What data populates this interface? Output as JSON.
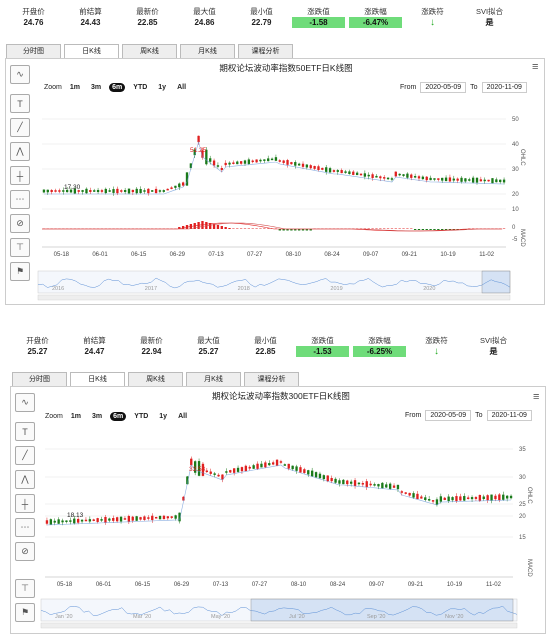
{
  "top": {
    "stats": [
      {
        "label": "开盘价",
        "value": "24.76",
        "style": ""
      },
      {
        "label": "前结算",
        "value": "24.43",
        "style": ""
      },
      {
        "label": "最新价",
        "value": "22.85",
        "style": ""
      },
      {
        "label": "最大值",
        "value": "24.86",
        "style": ""
      },
      {
        "label": "最小值",
        "value": "22.79",
        "style": ""
      },
      {
        "label": "涨跌值",
        "value": "-1.58",
        "style": "green"
      },
      {
        "label": "涨跌幅",
        "value": "-6.47%",
        "style": "green"
      },
      {
        "label": "涨跌符",
        "value": "↓",
        "style": "arrow"
      },
      {
        "label": "SVI拟合",
        "value": "是",
        "style": ""
      }
    ],
    "tabs": [
      "分时图",
      "日K线",
      "周K线",
      "月K线",
      "课程分析"
    ],
    "title": "期权论坛波动率指数50ETF日K线图",
    "zoom_label": "Zoom",
    "zoom_buttons": [
      "1m",
      "3m",
      "6m",
      "YTD",
      "1y",
      "All"
    ],
    "from_label": "From",
    "from_value": "2020-05-09",
    "to_label": "To",
    "to_value": "2020-11-09",
    "yaxis_ticks": [
      "50",
      "40",
      "30",
      "20",
      "10"
    ],
    "macd_ticks": [
      "0",
      "-5"
    ],
    "ohlc_label": "OHLC",
    "macd_label": "MACD",
    "xaxis_ticks": [
      "05-18",
      "06-01",
      "06-15",
      "06-29",
      "07-13",
      "07-27",
      "08-10",
      "08-24",
      "09-07",
      "09-21",
      "10-19",
      "11-02"
    ],
    "nav_years": [
      "2016",
      "2017",
      "2018",
      "2019",
      "2020"
    ],
    "marker_a": "17.30",
    "marker_b": "51.25"
  },
  "bottom": {
    "stats": [
      {
        "label": "开盘价",
        "value": "25.27",
        "style": ""
      },
      {
        "label": "前结算",
        "value": "24.47",
        "style": ""
      },
      {
        "label": "最新价",
        "value": "22.94",
        "style": ""
      },
      {
        "label": "最大值",
        "value": "25.27",
        "style": ""
      },
      {
        "label": "最小值",
        "value": "22.85",
        "style": ""
      },
      {
        "label": "涨跌值",
        "value": "-1.53",
        "style": "green"
      },
      {
        "label": "涨跌幅",
        "value": "-6.25%",
        "style": "green"
      },
      {
        "label": "涨跌符",
        "value": "↓",
        "style": "arrow"
      },
      {
        "label": "SVI拟合",
        "value": "是",
        "style": ""
      }
    ],
    "tabs": [
      "分时图",
      "日K线",
      "周K线",
      "月K线",
      "课程分析"
    ],
    "title": "期权论坛波动率指数300ETF日K线图",
    "zoom_label": "Zoom",
    "zoom_buttons": [
      "1m",
      "3m",
      "6m",
      "YTD",
      "1y",
      "All"
    ],
    "from_label": "From",
    "from_value": "2020-05-09",
    "to_label": "To",
    "to_value": "2020-11-09",
    "yaxis_ticks": [
      "35",
      "30",
      "25",
      "20",
      "15"
    ],
    "ohlc_label": "OHLC",
    "macd_label": "MACD",
    "xaxis_ticks": [
      "05-18",
      "06-01",
      "06-15",
      "06-29",
      "07-13",
      "07-27",
      "08-10",
      "08-24",
      "09-07",
      "09-21",
      "10-19",
      "11-02"
    ],
    "nav_months": [
      "Jan '20",
      "Mar '20",
      "May '20",
      "Jul '20",
      "Sep '20",
      "Nov '20"
    ],
    "marker_a": "18.13",
    "marker_b": "33.53"
  },
  "colors": {
    "up": "#e02020",
    "down": "#1a7a1a",
    "accent": "#5b8fd6"
  }
}
